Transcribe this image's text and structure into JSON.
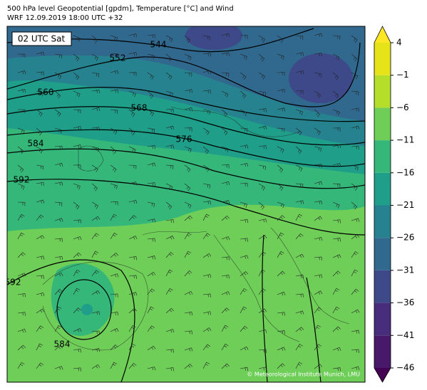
{
  "header": {
    "title": "500 hPa level Geopotential [gpdm], Temperature [°C] and Wind",
    "subtitle": "WRF 12.09.2019 18:00 UTC +32"
  },
  "map": {
    "time_label": "02 UTC Sat",
    "contour_labels": [
      "544",
      "552",
      "560",
      "568",
      "576",
      "584",
      "592",
      "592",
      "584"
    ],
    "credit": "© Meteorological Institute Munich, LMU"
  },
  "colorbar": {
    "lim": [
      -46,
      4
    ],
    "ticks": [
      {
        "value": -46,
        "label": "−46"
      },
      {
        "value": -41,
        "label": "−41"
      },
      {
        "value": -36,
        "label": "−36"
      },
      {
        "value": -31,
        "label": "−31"
      },
      {
        "value": -26,
        "label": "−26"
      },
      {
        "value": -21,
        "label": "−21"
      },
      {
        "value": -16,
        "label": "−16"
      },
      {
        "value": -11,
        "label": "−11"
      },
      {
        "value": -6,
        "label": "−6"
      },
      {
        "value": -1,
        "label": "−1"
      },
      4
    ],
    "colors": [
      "#48186a",
      "#472d7b",
      "#3e4989",
      "#31688e",
      "#26828e",
      "#1f9e89",
      "#35b779",
      "#6ece58",
      "#b5de2b",
      "#e6e419"
    ],
    "extend_colors": [
      "#440154",
      "#fde725"
    ]
  }
}
